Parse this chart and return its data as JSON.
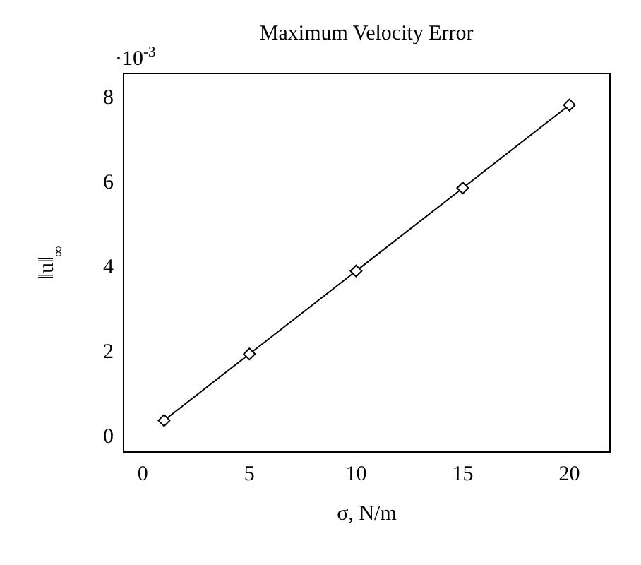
{
  "chart_data": {
    "type": "line",
    "title": "Maximum Velocity Error",
    "xlabel": "σ, N/m",
    "ylabel": "‖u‖$_{∞}$",
    "x": [
      1,
      5,
      10,
      15,
      20
    ],
    "series": [
      {
        "color": "#000000",
        "values": [
          0.39,
          1.96,
          3.92,
          5.88,
          7.84
        ]
      }
    ],
    "xlim": [
      -0.9,
      21.9
    ],
    "xticks": [
      0,
      5,
      10,
      15,
      20
    ],
    "ylim": [
      -0.355,
      8.585
    ],
    "yticks": [
      0,
      2,
      4,
      6,
      8
    ],
    "annotations": [
      "·10$^{-3}$"
    ],
    "marker": "diamond",
    "line_style": "solid",
    "grid": false,
    "legend": false
  }
}
